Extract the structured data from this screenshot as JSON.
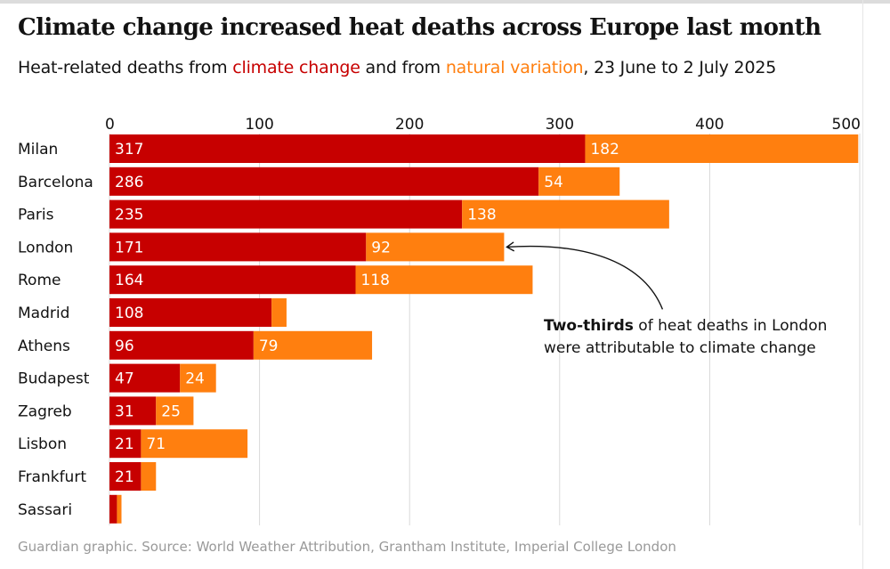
{
  "header": {
    "title": "Climate change increased heat deaths across Europe last month",
    "subtitle_pre": "Heat-related deaths from ",
    "subtitle_climate": "climate change",
    "subtitle_mid": " and from ",
    "subtitle_natural": "natural variation",
    "subtitle_post": ", 23 June to 2 July 2025"
  },
  "colors": {
    "climate_change": "#c70000",
    "natural_variation": "#ff7f0f",
    "gridline": "#d9d9d9",
    "text": "#121212"
  },
  "annotation": {
    "bold": "Two-thirds",
    "rest": " of heat deaths in London were attributable to climate change",
    "target_city": "London"
  },
  "source": "Guardian graphic. Source: World Weather Attribution, Grantham Institute,  Imperial College London",
  "chart_data": {
    "type": "bar",
    "orientation": "horizontal",
    "stacked": true,
    "title": "Climate change increased heat deaths across Europe last month",
    "xlim": [
      0,
      500
    ],
    "xticks": [
      0,
      100,
      200,
      300,
      400,
      500
    ],
    "grid": true,
    "categories": [
      "Milan",
      "Barcelona",
      "Paris",
      "London",
      "Rome",
      "Madrid",
      "Athens",
      "Budapest",
      "Zagreb",
      "Lisbon",
      "Frankfurt",
      "Sassari"
    ],
    "series": [
      {
        "name": "climate change",
        "color": "#c70000",
        "values": [
          317,
          286,
          235,
          171,
          164,
          108,
          96,
          47,
          31,
          21,
          21,
          5
        ]
      },
      {
        "name": "natural variation",
        "color": "#ff7f0f",
        "values": [
          182,
          54,
          138,
          92,
          118,
          10,
          79,
          24,
          25,
          71,
          10,
          3
        ]
      }
    ],
    "labels_shown": [
      [
        "317",
        "286",
        "235",
        "171",
        "164",
        "108",
        "96",
        "47",
        "31",
        "21",
        "21",
        ""
      ],
      [
        "182",
        "54",
        "138",
        "92",
        "118",
        "",
        "79",
        "24",
        "25",
        "71",
        "",
        ""
      ]
    ]
  }
}
